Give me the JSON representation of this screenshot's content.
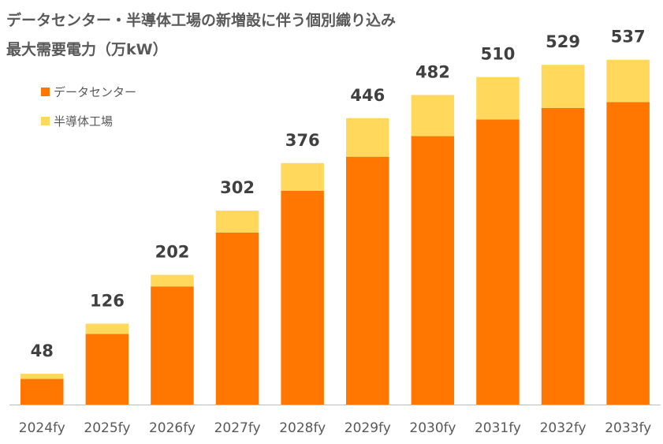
{
  "chart_data": {
    "type": "bar",
    "stacked": true,
    "title_lines": [
      "データセンター・半導体工場の新増設に伴う個別織り込み",
      "最大需要電力（万kW）"
    ],
    "categories": [
      "2024fy",
      "2025fy",
      "2026fy",
      "2027fy",
      "2028fy",
      "2029fy",
      "2030fy",
      "2031fy",
      "2032fy",
      "2033fy"
    ],
    "series": [
      {
        "name": "データセンター",
        "color": "#FF7700",
        "values": [
          40,
          110,
          184,
          268,
          333,
          386,
          418,
          444,
          462,
          471
        ]
      },
      {
        "name": "半導体工場",
        "color": "#FFD85C",
        "values": [
          8,
          16,
          18,
          34,
          43,
          60,
          64,
          66,
          67,
          66
        ]
      }
    ],
    "totals": [
      "48",
      "126",
      "202",
      "302",
      "376",
      "446",
      "482",
      "510",
      "529",
      "537"
    ],
    "ylim": [
      0,
      560
    ],
    "xlabel": "",
    "ylabel": "",
    "legend_position": "top-left",
    "grid": false,
    "axis_color": "#BFBFBF"
  }
}
